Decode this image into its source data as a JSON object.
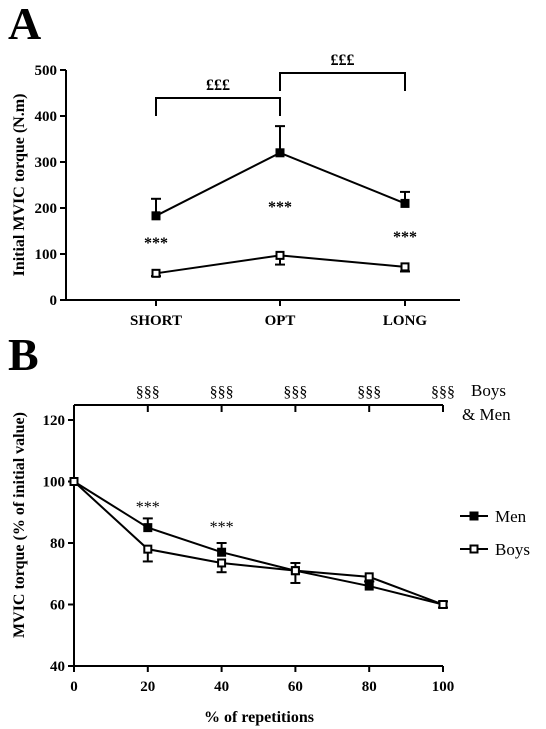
{
  "chart_data": [
    {
      "panel": "A",
      "type": "line",
      "ylabel": "Initial MVIC torque (N.m)",
      "xlabel": "",
      "categories": [
        "SHORT",
        "OPT",
        "LONG"
      ],
      "ylim": [
        0,
        500
      ],
      "yticks": [
        0,
        100,
        200,
        300,
        400,
        500
      ],
      "series": [
        {
          "marker": "filled-square",
          "values": [
            183,
            320,
            210
          ],
          "errors": [
            37,
            58,
            25
          ]
        },
        {
          "marker": "open-square",
          "values": [
            58,
            97,
            72
          ],
          "errors": [
            6,
            20,
            10
          ]
        }
      ],
      "significance": [
        "***",
        "***",
        "***"
      ],
      "brackets": [
        {
          "from": "SHORT",
          "to": "OPT",
          "label": "£££"
        },
        {
          "from": "OPT",
          "to": "LONG",
          "label": "£££"
        }
      ]
    },
    {
      "panel": "B",
      "type": "line",
      "ylabel": "MVIC torque (% of initial value)",
      "xlabel": "% of repetitions",
      "x": [
        0,
        20,
        40,
        60,
        80,
        100
      ],
      "ylim": [
        40,
        120
      ],
      "yticks": [
        40,
        60,
        80,
        100,
        120
      ],
      "xlim": [
        0,
        100
      ],
      "xticks": [
        0,
        20,
        40,
        60,
        80,
        100
      ],
      "series": [
        {
          "name": "Men",
          "marker": "filled-square",
          "values": [
            100,
            85,
            77,
            71,
            66,
            60
          ],
          "errors": [
            0,
            3,
            3,
            2.5,
            1.5,
            1
          ]
        },
        {
          "name": "Boys",
          "marker": "open-square",
          "values": [
            100,
            78,
            73.5,
            71,
            69,
            60
          ],
          "errors": [
            0,
            4,
            3,
            4,
            1.5,
            1
          ]
        }
      ],
      "significance": [
        {
          "x": 20,
          "label": "***"
        },
        {
          "x": 40,
          "label": "***"
        }
      ],
      "top_marks": {
        "label": "§§§",
        "x": [
          20,
          40,
          60,
          80,
          100
        ],
        "group": [
          "Boys",
          "& Men"
        ]
      },
      "legend_position": "right"
    }
  ]
}
